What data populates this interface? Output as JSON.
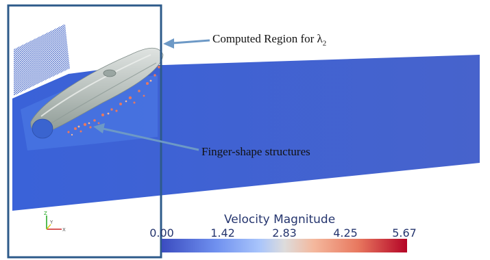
{
  "annotations": {
    "computed_region": "Computed Region for λ",
    "computed_region_subscript": "2",
    "finger_structures": "Finger-shape structures"
  },
  "colorbar": {
    "title": "Velocity Magnitude",
    "ticks": [
      "0.00",
      "1.42",
      "2.83",
      "4.25",
      "5.67"
    ],
    "min": 0.0,
    "max": 5.67
  },
  "axes_triad": {
    "z_label": "Z",
    "y_label": "Y",
    "x_label": "X"
  },
  "colors": {
    "water_blue": "#3f5fd6",
    "box_border": "#2d5a8a",
    "arrow": "#6d99c6",
    "surface_gray": "#c4cbc8",
    "text": "#111111"
  }
}
